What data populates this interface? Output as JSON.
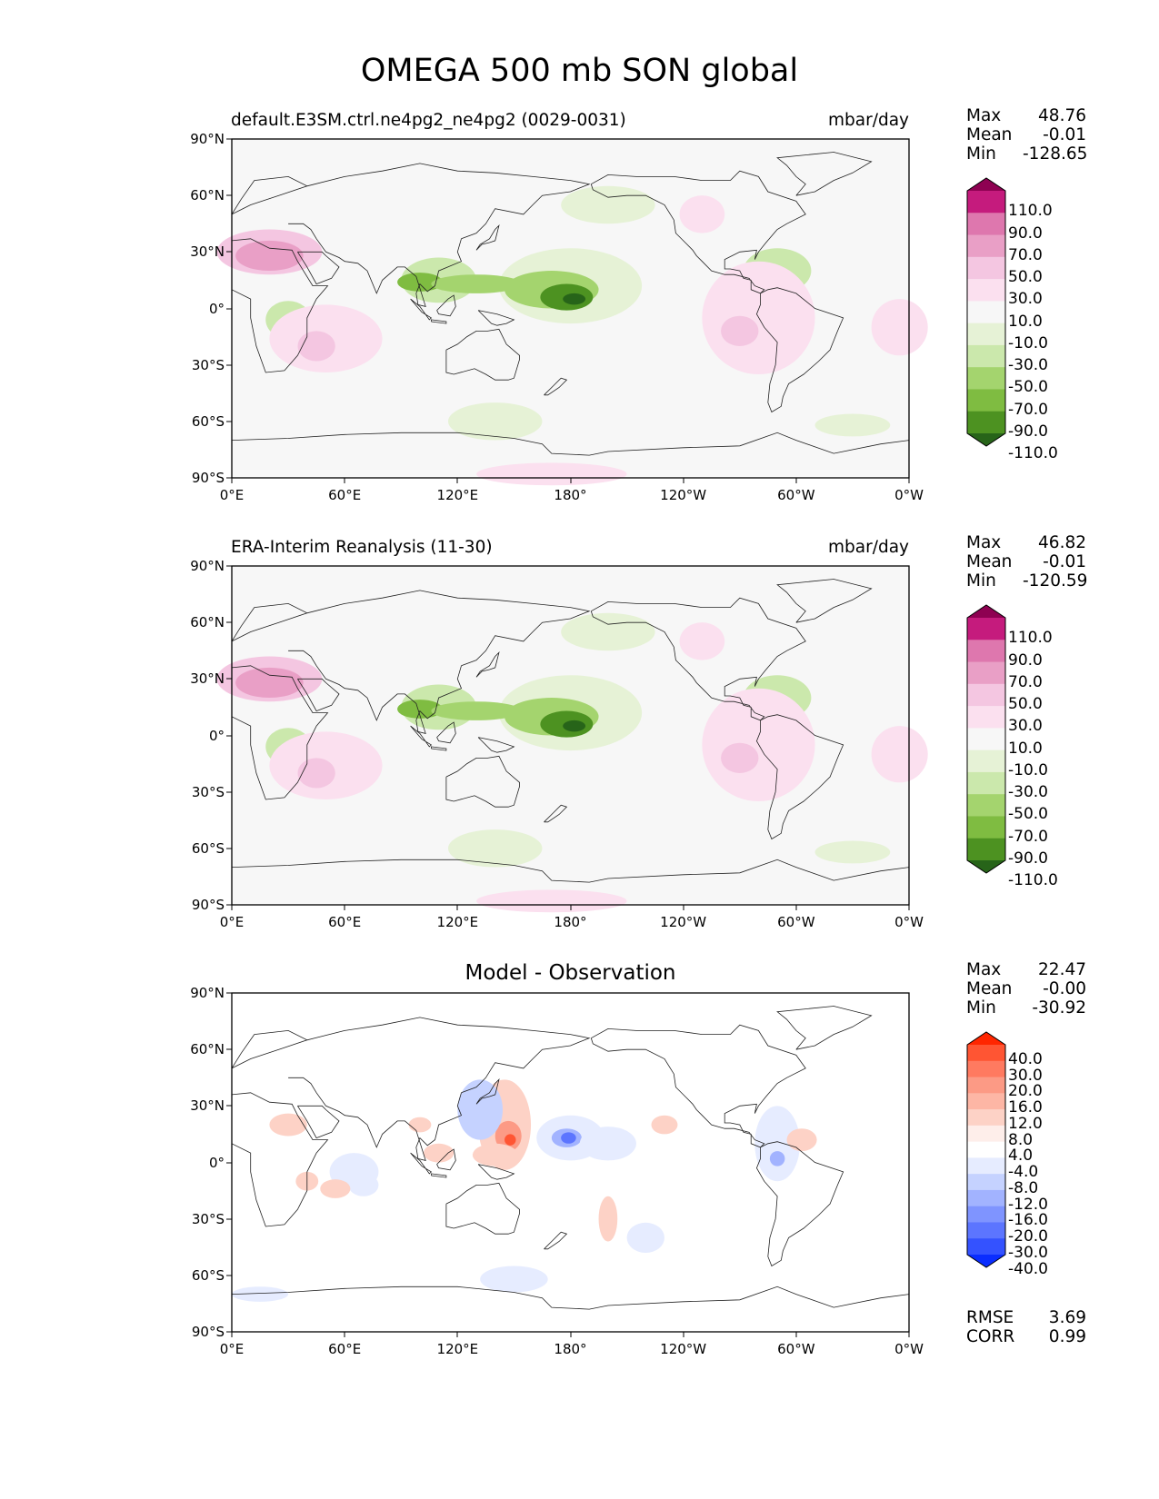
{
  "figure_title": "OMEGA 500 mb SON global",
  "chart_data": [
    {
      "type": "heatmap",
      "panel": "test",
      "title": "default.E3SM.ctrl.ne4pg2_ne4pg2 (0029-0031)",
      "units": "mbar/day",
      "stats": [
        {
          "label": "Max",
          "value": "48.76"
        },
        {
          "label": "Mean",
          "value": "-0.01"
        },
        {
          "label": "Min",
          "value": "-128.65"
        }
      ],
      "x_ticks": [
        "0°E",
        "60°E",
        "120°E",
        "180°",
        "120°W",
        "60°W",
        "0°W"
      ],
      "y_ticks": [
        "90°N",
        "60°N",
        "30°N",
        "0°",
        "30°S",
        "60°S",
        "90°S"
      ],
      "colorbar_labels": [
        "110.0",
        "90.0",
        "70.0",
        "50.0",
        "30.0",
        "10.0",
        "-10.0",
        "-30.0",
        "-50.0",
        "-70.0",
        "-90.0",
        "-110.0"
      ],
      "colorbar_colors": [
        "#8e0152",
        "#c51b7d",
        "#de77ae",
        "#e99fc6",
        "#f4c6e1",
        "#fbe0ef",
        "#f7f7f7",
        "#e6f2d6",
        "#cbe8ac",
        "#a4d46e",
        "#7fbc41",
        "#4d9221",
        "#276419"
      ]
    },
    {
      "type": "heatmap",
      "panel": "reference",
      "title": "ERA-Interim Reanalysis (11-30)",
      "units": "mbar/day",
      "stats": [
        {
          "label": "Max",
          "value": "46.82"
        },
        {
          "label": "Mean",
          "value": "-0.01"
        },
        {
          "label": "Min",
          "value": "-120.59"
        }
      ],
      "x_ticks": [
        "0°E",
        "60°E",
        "120°E",
        "180°",
        "120°W",
        "60°W",
        "0°W"
      ],
      "y_ticks": [
        "90°N",
        "60°N",
        "30°N",
        "0°",
        "30°S",
        "60°S",
        "90°S"
      ],
      "colorbar_labels": [
        "110.0",
        "90.0",
        "70.0",
        "50.0",
        "30.0",
        "10.0",
        "-10.0",
        "-30.0",
        "-50.0",
        "-70.0",
        "-90.0",
        "-110.0"
      ],
      "colorbar_colors": [
        "#8e0152",
        "#c51b7d",
        "#de77ae",
        "#e99fc6",
        "#f4c6e1",
        "#fbe0ef",
        "#f7f7f7",
        "#e6f2d6",
        "#cbe8ac",
        "#a4d46e",
        "#7fbc41",
        "#4d9221",
        "#276419"
      ]
    },
    {
      "type": "heatmap",
      "panel": "difference",
      "title": "Model - Observation",
      "units": "",
      "stats": [
        {
          "label": "Max",
          "value": "22.47"
        },
        {
          "label": "Mean",
          "value": "-0.00"
        },
        {
          "label": "Min",
          "value": "-30.92"
        }
      ],
      "extra_stats": [
        {
          "label": "RMSE",
          "value": "3.69"
        },
        {
          "label": "CORR",
          "value": "0.99"
        }
      ],
      "x_ticks": [
        "0°E",
        "60°E",
        "120°E",
        "180°",
        "120°W",
        "60°W",
        "0°W"
      ],
      "y_ticks": [
        "90°N",
        "60°N",
        "30°N",
        "0°",
        "30°S",
        "60°S",
        "90°S"
      ],
      "colorbar_labels": [
        "40.0",
        "30.0",
        "20.0",
        "16.0",
        "12.0",
        "8.0",
        "4.0",
        "-4.0",
        "-8.0",
        "-12.0",
        "-16.0",
        "-20.0",
        "-30.0",
        "-40.0"
      ],
      "colorbar_colors": [
        "#ff2600",
        "#ff5533",
        "#ff7a60",
        "#fc9a85",
        "#fdb6a5",
        "#fdd2c6",
        "#feeeea",
        "#ffffff",
        "#e6ecff",
        "#c5d2ff",
        "#a2b3ff",
        "#7f94ff",
        "#5c75ff",
        "#3452ff",
        "#0a2dff"
      ]
    }
  ]
}
